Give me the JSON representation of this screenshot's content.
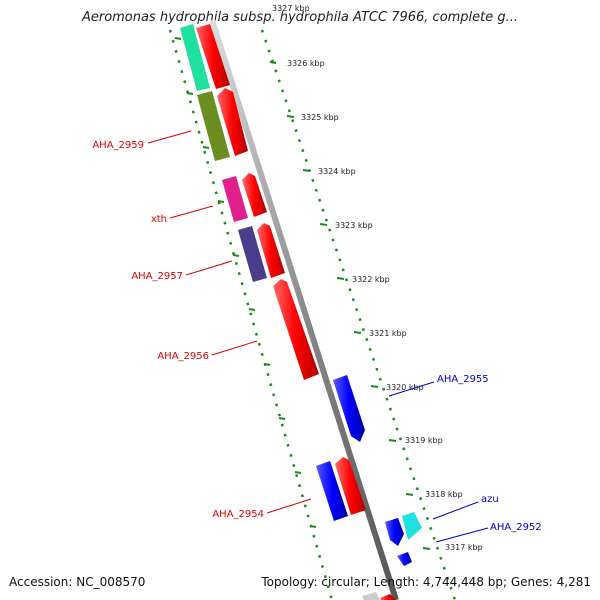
{
  "title": "Aeromonas hydrophila subsp. hydrophila ATCC 7966, complete g...",
  "footer": {
    "accession": "Accession: NC_008570",
    "summary": "Topology: circular; Length: 4,744,448 bp; Genes: 4,281"
  },
  "kbp_ticks": [
    "3327 kbp",
    "3326 kbp",
    "3325 kbp",
    "3324 kbp",
    "3323 kbp",
    "3322 kbp",
    "3321 kbp",
    "3320 kbp",
    "3319 kbp",
    "3318 kbp",
    "3317 kbp"
  ],
  "gene_labels": [
    "AHA_2959",
    "xth",
    "AHA_2957",
    "AHA_2956",
    "AHA_2954",
    "AHA_2955",
    "azu",
    "AHA_2952"
  ],
  "colors": {
    "reverse_gene": "#dd0000",
    "forward_gene": "#0000e0",
    "backbone": "#888888",
    "dots": "#1a8a1a",
    "teal": "#20e0a0",
    "olive": "#6b8e23",
    "magenta": "#e0208c",
    "slate": "#4b3c8c",
    "cyan": "#20e0e0"
  }
}
